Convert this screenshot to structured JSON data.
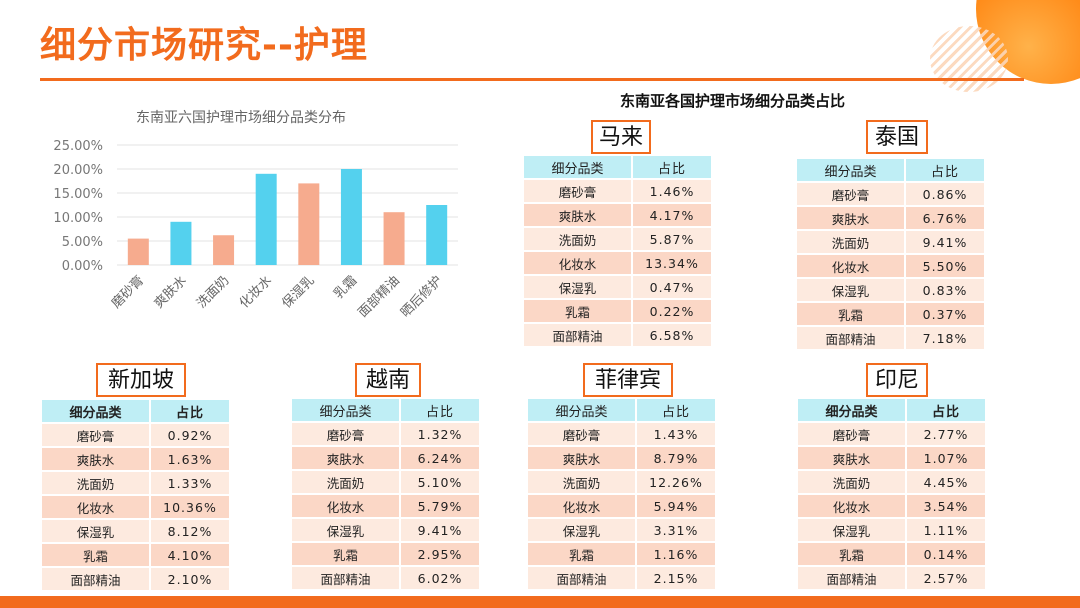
{
  "title": "细分市场研究--护理",
  "colors": {
    "accent": "#f26b1d",
    "bar_blue": "#54d1ee",
    "bar_orange": "#f6ab8e",
    "table_header": "#bfeef5",
    "table_cell": "#fbd7c6"
  },
  "chart_data": {
    "type": "bar",
    "title": "东南亚六国护理市场细分品类分布",
    "categories": [
      "磨砂膏",
      "爽肤水",
      "洗面奶",
      "化妆水",
      "保湿乳",
      "乳霜",
      "面部精油",
      "晒后修护"
    ],
    "values": [
      5.5,
      9.0,
      6.2,
      19.0,
      17.0,
      20.0,
      11.0,
      12.5
    ],
    "colors": [
      "#f6ab8e",
      "#54d1ee",
      "#f6ab8e",
      "#54d1ee",
      "#f6ab8e",
      "#54d1ee",
      "#f6ab8e",
      "#54d1ee"
    ],
    "y_ticks": [
      "0.00%",
      "5.00%",
      "10.00%",
      "15.00%",
      "20.00%",
      "25.00%"
    ],
    "ylim": [
      0,
      25
    ],
    "grid": true
  },
  "section_title": "东南亚各国护理市场细分品类占比",
  "table_header": {
    "category": "细分品类",
    "share": "占比"
  },
  "categories": [
    "磨砂膏",
    "爽肤水",
    "洗面奶",
    "化妆水",
    "保湿乳",
    "乳霜",
    "面部精油"
  ],
  "countries": {
    "malaysia": {
      "name": "马来",
      "shares": [
        "1.46%",
        "4.17%",
        "5.87%",
        "13.34%",
        "0.47%",
        "0.22%",
        "6.58%"
      ]
    },
    "thailand": {
      "name": "泰国",
      "shares": [
        "0.86%",
        "6.76%",
        "9.41%",
        "5.50%",
        "0.83%",
        "0.37%",
        "7.18%"
      ]
    },
    "singapore": {
      "name": "新加坡",
      "shares": [
        "0.92%",
        "1.63%",
        "1.33%",
        "10.36%",
        "8.12%",
        "4.10%",
        "2.10%"
      ]
    },
    "vietnam": {
      "name": "越南",
      "shares": [
        "1.32%",
        "6.24%",
        "5.10%",
        "5.79%",
        "9.41%",
        "2.95%",
        "6.02%"
      ]
    },
    "philippines": {
      "name": "菲律宾",
      "shares": [
        "1.43%",
        "8.79%",
        "12.26%",
        "5.94%",
        "3.31%",
        "1.16%",
        "2.15%"
      ]
    },
    "indonesia": {
      "name": "印尼",
      "shares": [
        "2.77%",
        "1.07%",
        "4.45%",
        "3.54%",
        "1.11%",
        "0.14%",
        "2.57%"
      ]
    }
  }
}
